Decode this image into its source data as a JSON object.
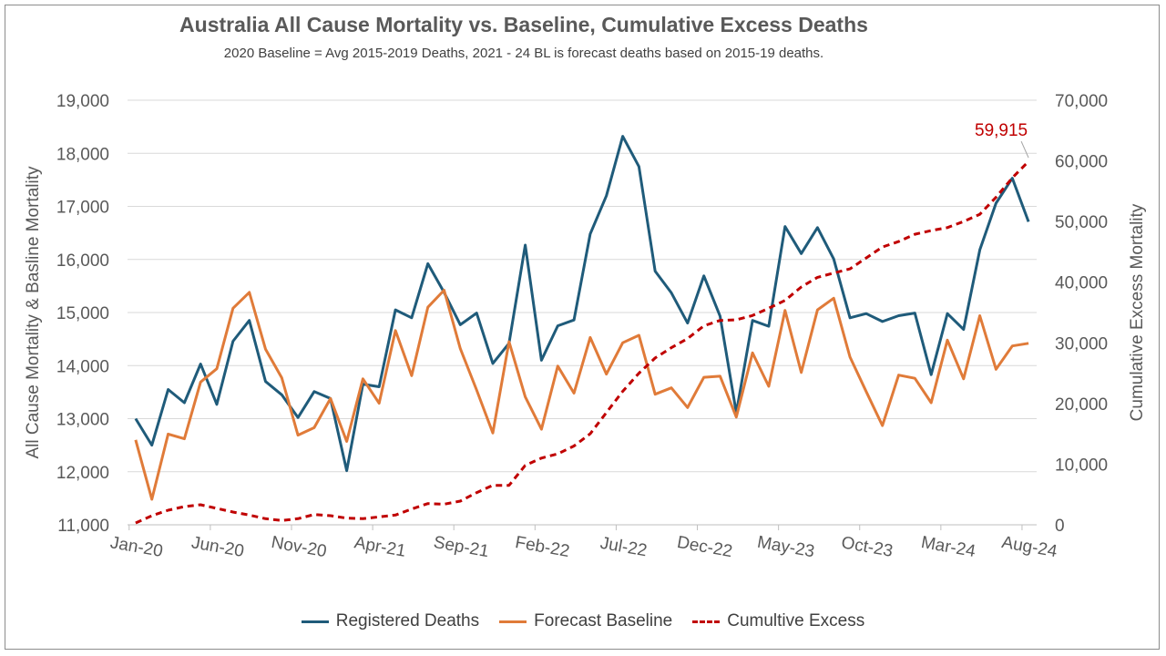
{
  "chart_data": {
    "type": "line",
    "title": "Australia All Cause Mortality vs. Baseline, Cumulative Excess Deaths",
    "subtitle": "2020 Baseline = Avg 2015-2019 Deaths, 2021 - 24 BL is forecast deaths based on 2015-19 deaths.",
    "ylabel": "All Cause Mortality & Basline Mortality",
    "y2label": "Cumulative Excess Mortality",
    "ylim": [
      11000,
      19000
    ],
    "y2lim": [
      0,
      70000
    ],
    "yticks": [
      "11,000",
      "12,000",
      "13,000",
      "14,000",
      "15,000",
      "16,000",
      "17,000",
      "18,000",
      "19,000"
    ],
    "y2ticks": [
      "0",
      "10,000",
      "20,000",
      "30,000",
      "40,000",
      "50,000",
      "60,000",
      "70,000"
    ],
    "xticks": [
      {
        "label": "Jan-20",
        "index": 0
      },
      {
        "label": "Jun-20",
        "index": 5
      },
      {
        "label": "Nov-20",
        "index": 10
      },
      {
        "label": "Apr-21",
        "index": 15
      },
      {
        "label": "Sep-21",
        "index": 20
      },
      {
        "label": "Feb-22",
        "index": 25
      },
      {
        "label": "Jul-22",
        "index": 30
      },
      {
        "label": "Dec-22",
        "index": 35
      },
      {
        "label": "May-23",
        "index": 40
      },
      {
        "label": "Oct-23",
        "index": 45
      },
      {
        "label": "Mar-24",
        "index": 50
      },
      {
        "label": "Aug-24",
        "index": 55
      }
    ],
    "x_start": "Jan-20",
    "x_end": "Aug-24",
    "grid": true,
    "legend_position": "bottom",
    "annotation": {
      "text": "59,915",
      "series": "Cumultive Excess",
      "index": 55
    },
    "series": [
      {
        "name": "Registered Deaths",
        "color": "#1f5b7a",
        "axis": "left",
        "style": "solid",
        "values": [
          13000,
          12500,
          13550,
          13300,
          14030,
          13270,
          14460,
          14850,
          13700,
          13450,
          13020,
          13510,
          13380,
          12020,
          13650,
          13600,
          15050,
          14900,
          15920,
          15380,
          14770,
          14990,
          14040,
          14420,
          16270,
          14100,
          14750,
          14860,
          16480,
          17200,
          18320,
          17750,
          15780,
          15370,
          14800,
          15690,
          14930,
          13110,
          14850,
          14740,
          16620,
          16110,
          16600,
          16010,
          14900,
          14980,
          14830,
          14940,
          14990,
          13830,
          14980,
          14680,
          16180,
          17060,
          17530,
          16710
        ]
      },
      {
        "name": "Forecast Baseline",
        "color": "#e07b39",
        "axis": "left",
        "style": "solid",
        "values": [
          12600,
          11480,
          12710,
          12620,
          13690,
          13940,
          15080,
          15380,
          14310,
          13770,
          12690,
          12830,
          13380,
          12570,
          13750,
          13290,
          14660,
          13810,
          15100,
          15420,
          14320,
          13540,
          12730,
          14450,
          13410,
          12800,
          13990,
          13480,
          14530,
          13840,
          14430,
          14570,
          13460,
          13580,
          13210,
          13780,
          13800,
          13030,
          14240,
          13610,
          15040,
          13870,
          15050,
          15270,
          14160,
          13510,
          12870,
          13820,
          13760,
          13300,
          14480,
          13750,
          14940,
          13930,
          14370,
          14420
        ]
      },
      {
        "name": "Cumultive Excess",
        "color": "#c00000",
        "axis": "right",
        "style": "dashed",
        "values": [
          300,
          1500,
          2400,
          3000,
          3300,
          2700,
          2100,
          1600,
          1000,
          700,
          1000,
          1700,
          1500,
          1100,
          1000,
          1300,
          1600,
          2600,
          3500,
          3400,
          3900,
          5300,
          6500,
          6500,
          9800,
          11000,
          11700,
          13000,
          15000,
          18500,
          22000,
          25000,
          27500,
          29200,
          30700,
          32800,
          33700,
          33800,
          34500,
          35700,
          37000,
          39200,
          40800,
          41500,
          42200,
          44000,
          45800,
          46700,
          47900,
          48500,
          49000,
          50000,
          51200,
          54000,
          57200,
          59915
        ]
      }
    ]
  }
}
